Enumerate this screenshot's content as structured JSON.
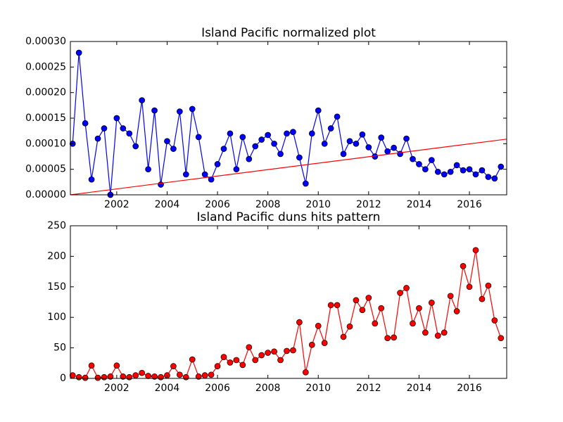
{
  "chart_data": [
    {
      "type": "line",
      "title": "Island Pacific normalized plot",
      "xlim": [
        2000.16,
        2017.48
      ],
      "xticks": [
        2002,
        2004,
        2006,
        2008,
        2010,
        2012,
        2014,
        2016
      ],
      "ylim": [
        0,
        0.0003
      ],
      "yticks": [
        {
          "value": 0,
          "label": "0.00000"
        },
        {
          "value": 5e-05,
          "label": "0.00005"
        },
        {
          "value": 0.0001,
          "label": "0.00010"
        },
        {
          "value": 0.00015,
          "label": "0.00015"
        },
        {
          "value": 0.0002,
          "label": "0.00020"
        },
        {
          "value": 0.00025,
          "label": "0.00025"
        },
        {
          "value": 0.0003,
          "label": "0.00030"
        }
      ],
      "series": [
        {
          "color": "#0000ff",
          "marker": true,
          "x": [
            2000.25,
            2000.5,
            2000.75,
            2001,
            2001.25,
            2001.5,
            2001.75,
            2002,
            2002.25,
            2002.5,
            2002.75,
            2003,
            2003.25,
            2003.5,
            2003.75,
            2004,
            2004.25,
            2004.5,
            2004.75,
            2005,
            2005.25,
            2005.5,
            2005.75,
            2006,
            2006.25,
            2006.5,
            2006.75,
            2007,
            2007.25,
            2007.5,
            2007.75,
            2008,
            2008.25,
            2008.5,
            2008.75,
            2009,
            2009.25,
            2009.5,
            2009.75,
            2010,
            2010.25,
            2010.5,
            2010.75,
            2011,
            2011.25,
            2011.5,
            2011.75,
            2012,
            2012.25,
            2012.5,
            2012.75,
            2013,
            2013.25,
            2013.5,
            2013.75,
            2014,
            2014.25,
            2014.5,
            2014.75,
            2015,
            2015.25,
            2015.5,
            2015.75,
            2016,
            2016.25,
            2016.5,
            2016.75,
            2017,
            2017.25
          ],
          "values": [
            0.0001,
            0.000278,
            0.00014,
            3e-05,
            0.00011,
            0.00013,
            0,
            0.00015,
            0.00013,
            0.00012,
            9.5e-05,
            0.000185,
            5e-05,
            0.000165,
            2e-05,
            0.000105,
            9e-05,
            0.000163,
            4e-05,
            0.000168,
            0.000113,
            4e-05,
            3e-05,
            6e-05,
            9e-05,
            0.00012,
            5e-05,
            0.000113,
            7e-05,
            9.5e-05,
            0.000108,
            0.000117,
            0.0001,
            8e-05,
            0.00012,
            0.000123,
            7.3e-05,
            2.2e-05,
            0.00012,
            0.000165,
            0.0001,
            0.00013,
            0.000153,
            8e-05,
            0.000105,
            0.0001,
            0.000118,
            9.3e-05,
            7.5e-05,
            0.000112,
            8.5e-05,
            9.2e-05,
            8e-05,
            0.00011,
            7e-05,
            6e-05,
            5e-05,
            6.8e-05,
            4.5e-05,
            4e-05,
            4.5e-05,
            5.8e-05,
            4.8e-05,
            5e-05,
            4e-05,
            4.8e-05,
            3.5e-05,
            3.2e-05,
            5.5e-05
          ]
        },
        {
          "color": "#ff0000",
          "marker": false,
          "x": [
            2000.16,
            2017.48
          ],
          "values": [
            0,
            0.000109
          ]
        }
      ]
    },
    {
      "type": "line",
      "title": "Island Pacific duns hits pattern",
      "xlim": [
        2000.16,
        2017.48
      ],
      "xticks": [
        2002,
        2004,
        2006,
        2008,
        2010,
        2012,
        2014,
        2016
      ],
      "ylim": [
        0,
        250
      ],
      "yticks": [
        0,
        50,
        100,
        150,
        200,
        250
      ],
      "series": [
        {
          "color": "#ff0000",
          "marker": true,
          "x": [
            2000.25,
            2000.5,
            2000.75,
            2001,
            2001.25,
            2001.5,
            2001.75,
            2002,
            2002.25,
            2002.5,
            2002.75,
            2003,
            2003.25,
            2003.5,
            2003.75,
            2004,
            2004.25,
            2004.5,
            2004.75,
            2005,
            2005.25,
            2005.5,
            2005.75,
            2006,
            2006.25,
            2006.5,
            2006.75,
            2007,
            2007.25,
            2007.5,
            2007.75,
            2008,
            2008.25,
            2008.5,
            2008.75,
            2009,
            2009.25,
            2009.5,
            2009.75,
            2010,
            2010.25,
            2010.5,
            2010.75,
            2011,
            2011.25,
            2011.5,
            2011.75,
            2012,
            2012.25,
            2012.5,
            2012.75,
            2013,
            2013.25,
            2013.5,
            2013.75,
            2014,
            2014.25,
            2014.5,
            2014.75,
            2015,
            2015.25,
            2015.5,
            2015.75,
            2016,
            2016.25,
            2016.5,
            2016.75,
            2017,
            2017.25
          ],
          "values": [
            5,
            2,
            1,
            21,
            1,
            2,
            3,
            21,
            3,
            2,
            5,
            9,
            4,
            3,
            2,
            5,
            20,
            6,
            2,
            31,
            3,
            5,
            6,
            20,
            35,
            26,
            30,
            22,
            51,
            30,
            38,
            42,
            44,
            30,
            45,
            46,
            92,
            10,
            55,
            86,
            58,
            120,
            120,
            68,
            85,
            128,
            112,
            132,
            90,
            115,
            66,
            67,
            140,
            148,
            90,
            115,
            75,
            124,
            70,
            75,
            135,
            110,
            184,
            150,
            210,
            130,
            152,
            95,
            66
          ]
        }
      ]
    }
  ]
}
